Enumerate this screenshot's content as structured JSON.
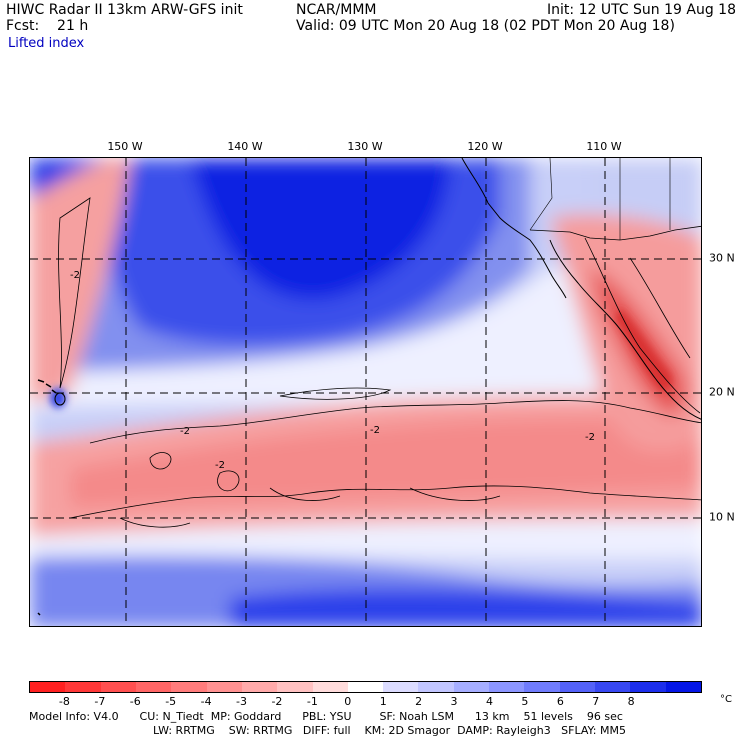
{
  "header": {
    "title": "HIWC Radar II 13km ARW-GFS init",
    "fcst": "Fcst:    21 h",
    "field": "Lifted index",
    "center": "NCAR/MMM",
    "init": "Init: 12 UTC Sun 19 Aug 18",
    "valid": "Valid: 09 UTC Mon 20 Aug 18 (02 PDT Mon 20 Aug 18)"
  },
  "map": {
    "lon_labels": [
      "150 W",
      "140 W",
      "130 W",
      "120 W",
      "110 W"
    ],
    "lat_labels": [
      "30 N",
      "20 N",
      "10 N"
    ],
    "contour_labels": [
      "-2",
      "-2",
      "-2",
      "-2",
      "-2"
    ],
    "colors": {
      "strong_blue": "#0a1ee0",
      "mid_blue": "#5a6ff0",
      "light_blue": "#aab6f5",
      "white": "#f7f7ff",
      "light_red": "#f9b5b5",
      "mid_red": "#f27a7a",
      "strong_red": "#e54040"
    }
  },
  "colorbar": {
    "ticks": [
      "-8",
      "-7",
      "-6",
      "-5",
      "-4",
      "-3",
      "-2",
      "-1",
      "0",
      "1",
      "2",
      "3",
      "4",
      "5",
      "6",
      "7",
      "8"
    ],
    "unit": "°C",
    "swatches": [
      "#ff2020",
      "#ff3838",
      "#ff5050",
      "#ff6666",
      "#ff7c7c",
      "#ff9292",
      "#ffaaaa",
      "#ffc2c2",
      "#ffdcdc",
      "#ffffff",
      "#dcdcff",
      "#c2c6ff",
      "#a6aeff",
      "#8c96ff",
      "#707cfc",
      "#5462f8",
      "#3848f2",
      "#1c2eec",
      "#0416e6"
    ]
  },
  "footer": {
    "line1": "Model Info: V4.0      CU: N_Tiedt  MP: Goddard      PBL: YSU        SF: Noah LSM      13 km    51 levels    96 sec",
    "line2": "LW: RRTMG    SW: RRTMG   DIFF: full    KM: 2D Smagor  DAMP: Rayleigh3   SFLAY: MM5"
  }
}
